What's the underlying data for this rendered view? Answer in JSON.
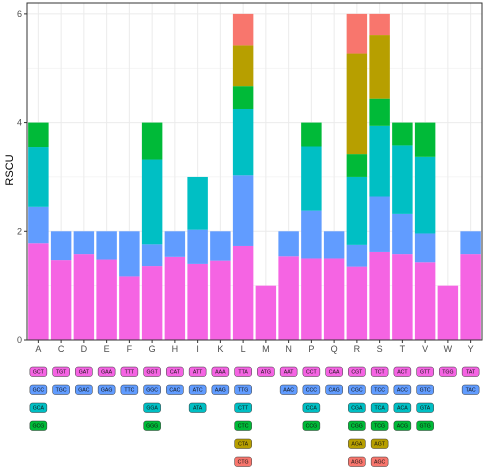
{
  "colors": {
    "level1": "#F564E3",
    "level2": "#619CFF",
    "level3": "#00BFC4",
    "level4": "#00BA38",
    "level5": "#B79F00",
    "level6": "#F8766D",
    "panel": "#ffffff",
    "grid": "#ebebeb",
    "border": "#333333"
  },
  "chart_data": {
    "type": "bar",
    "stacked": true,
    "xlabel": "",
    "ylabel": "RSCU",
    "ylim": [
      0,
      6.2
    ],
    "yticks": [
      0,
      2,
      4,
      6
    ],
    "grid": true,
    "categories": [
      "A",
      "C",
      "D",
      "E",
      "F",
      "G",
      "H",
      "I",
      "K",
      "L",
      "M",
      "N",
      "P",
      "Q",
      "R",
      "S",
      "T",
      "V",
      "W",
      "Y"
    ],
    "stacks": [
      [
        1.78,
        0.67,
        1.1,
        0.45
      ],
      [
        1.47,
        0.53
      ],
      [
        1.58,
        0.42
      ],
      [
        1.48,
        0.52
      ],
      [
        1.17,
        0.83
      ],
      [
        1.36,
        0.4,
        1.56,
        0.68
      ],
      [
        1.53,
        0.47
      ],
      [
        1.4,
        0.63,
        0.97
      ],
      [
        1.46,
        0.54
      ],
      [
        1.73,
        1.3,
        1.22,
        0.42,
        0.75,
        0.58
      ],
      [
        1.0
      ],
      [
        1.54,
        0.46
      ],
      [
        1.5,
        0.88,
        1.18,
        0.44
      ],
      [
        1.5,
        0.5
      ],
      [
        1.35,
        0.4,
        1.25,
        0.42,
        1.85,
        0.73
      ],
      [
        1.62,
        1.02,
        1.3,
        0.5,
        1.17,
        0.39
      ],
      [
        1.58,
        0.74,
        1.26,
        0.42
      ],
      [
        1.43,
        0.53,
        1.41,
        0.63
      ],
      [
        1.0
      ],
      [
        1.58,
        0.42
      ]
    ],
    "codons": [
      [
        "GCT",
        "GCC",
        "GCA",
        "GCG"
      ],
      [
        "TGT",
        "TGC"
      ],
      [
        "GAT",
        "GAC"
      ],
      [
        "GAA",
        "GAG"
      ],
      [
        "TTT",
        "TTC"
      ],
      [
        "GGT",
        "GGC",
        "GGA",
        "GGG"
      ],
      [
        "CAT",
        "CAC"
      ],
      [
        "ATT",
        "ATC",
        "ATA"
      ],
      [
        "AAA",
        "AAG"
      ],
      [
        "TTA",
        "TTG",
        "CTT",
        "CTC",
        "CTA",
        "CTG"
      ],
      [
        "ATG"
      ],
      [
        "AAT",
        "AAC"
      ],
      [
        "CCT",
        "CCC",
        "CCA",
        "CCG"
      ],
      [
        "CAA",
        "CAG"
      ],
      [
        "CGT",
        "CGC",
        "CGA",
        "CGG",
        "AGA",
        "AGG"
      ],
      [
        "TCT",
        "TCC",
        "TCA",
        "TCG",
        "AGT",
        "AGC"
      ],
      [
        "ACT",
        "ACC",
        "ACA",
        "ACG"
      ],
      [
        "GTT",
        "GTC",
        "GTA",
        "GTG"
      ],
      [
        "TGG"
      ],
      [
        "TAT",
        "TAC"
      ]
    ]
  }
}
